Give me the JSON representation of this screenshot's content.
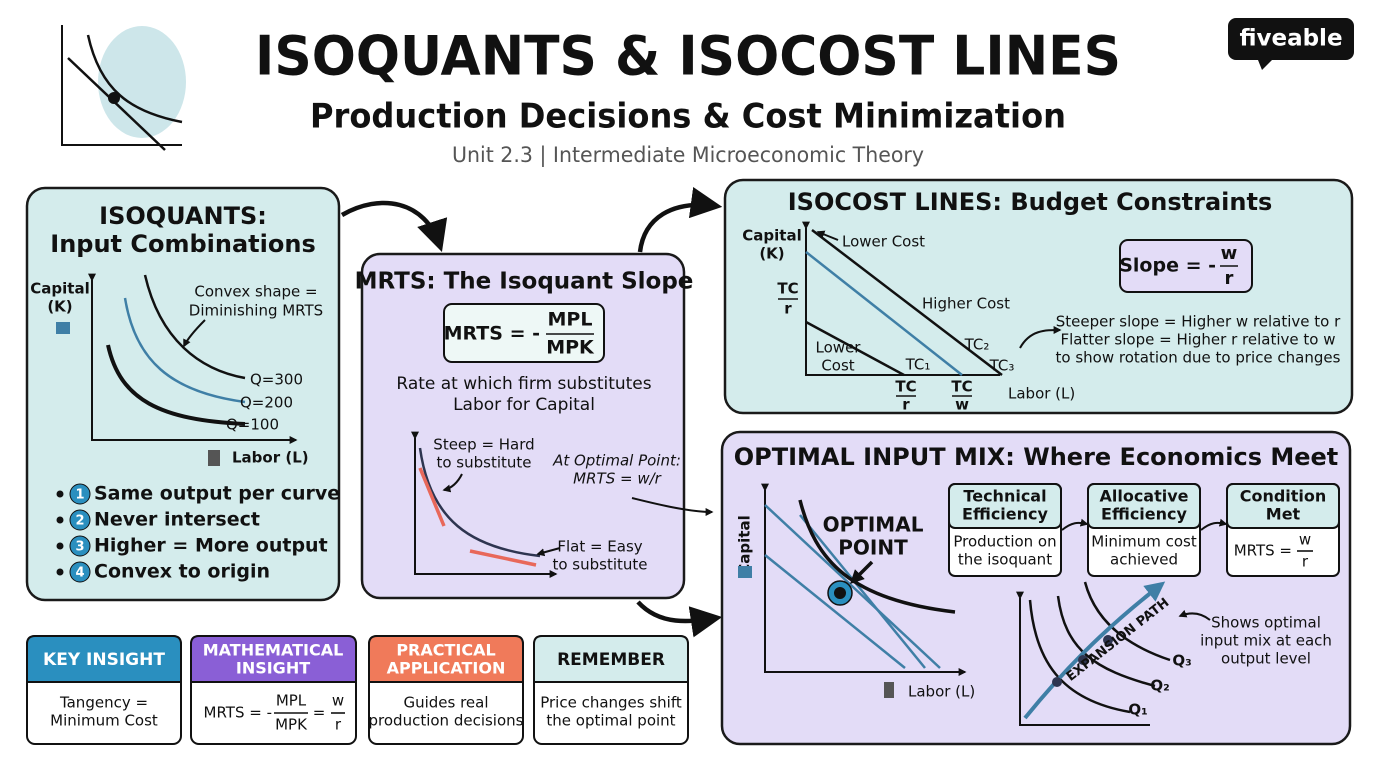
{
  "header": {
    "title": "ISOQUANTS & ISOCOST LINES",
    "subtitle": "Production Decisions & Cost Minimization",
    "unit": "Unit 2.3 | Intermediate Microeconomic Theory",
    "logo": "fiveable"
  },
  "isoquants": {
    "title": [
      "ISOQUANTS:",
      "Input Combinations"
    ],
    "y_axis": [
      "Capital",
      "(K)"
    ],
    "x_axis": "Labor (L)",
    "annotation": [
      "Convex shape =",
      "Diminishing MRTS"
    ],
    "curves": [
      "Q=300",
      "Q=200",
      "Q=100"
    ],
    "properties": [
      {
        "number": "1",
        "text": "Same output per curve"
      },
      {
        "number": "2",
        "text": "Never intersect"
      },
      {
        "number": "3",
        "text": "Higher = More output"
      },
      {
        "number": "4",
        "text": "Convex to origin"
      }
    ]
  },
  "mrts": {
    "title": "MRTS: The Isoquant Slope",
    "formula": {
      "lhs": "MRTS = -",
      "numerator": "MPL",
      "denominator": "MPK"
    },
    "description": [
      "Rate at which firm substitutes",
      "Labor for Capital"
    ],
    "steep": [
      "Steep = Hard",
      "to substitute"
    ],
    "flat": [
      "Flat = Easy",
      "to substitute"
    ],
    "optimal_note": [
      "At Optimal Point:",
      "MRTS = w/r"
    ]
  },
  "isocost": {
    "title": "ISOCOST LINES: Budget Constraints",
    "y_axis": [
      "Capital",
      "(K)"
    ],
    "x_axis": "Labor (L)",
    "lower_cost_top": "Lower Cost",
    "higher_cost": "Higher Cost",
    "lower_cost_inner": [
      "Lower",
      "Cost"
    ],
    "y_intercept": {
      "numerator": "TC",
      "denominator": "r"
    },
    "lines": [
      "TC₁",
      "TC₂",
      "TC₃"
    ],
    "x_intercepts": [
      {
        "numerator": "TC",
        "denominator": "r"
      },
      {
        "numerator": "TC",
        "denominator": "w"
      }
    ],
    "formula": {
      "lhs": "Slope = -",
      "numerator": "w",
      "denominator": "r"
    },
    "notes": [
      "Steeper slope = Higher w relative to r",
      "Flatter slope = Higher r relative to w",
      "to show rotation due to price changes"
    ]
  },
  "optimal": {
    "title": "OPTIMAL INPUT MIX: Where Economics Meet",
    "y_axis": "Capital",
    "x_axis": "Labor (L)",
    "point": [
      "OPTIMAL",
      "POINT"
    ],
    "steps": [
      {
        "heading": [
          "Technical",
          "Efficiency"
        ],
        "body": [
          "Production on",
          "the isoquant"
        ]
      },
      {
        "heading": [
          "Allocative",
          "Efficiency"
        ],
        "body": [
          "Minimum cost",
          "achieved"
        ]
      },
      {
        "heading": [
          "Condition",
          "Met"
        ],
        "body": {
          "lhs": "MRTS =",
          "numerator": "w",
          "denominator": "r"
        }
      }
    ],
    "expansion": {
      "label": "EXPANSION PATH",
      "curves": [
        "Q₁",
        "Q₂",
        "Q₃"
      ],
      "note": [
        "Shows optimal",
        "input mix at each",
        "output level"
      ]
    }
  },
  "cards": [
    {
      "heading": [
        "KEY INSIGHT"
      ],
      "body": [
        "Tangency =",
        "Minimum Cost"
      ]
    },
    {
      "heading": [
        "MATHEMATICAL",
        "INSIGHT"
      ],
      "body": {
        "lhs": "MRTS = -",
        "numerator": "MPL",
        "denominator": "MPK",
        "equals": "=",
        "numerator2": "w",
        "denominator2": "r"
      }
    },
    {
      "heading": [
        "PRACTICAL",
        "APPLICATION"
      ],
      "body": [
        "Guides real",
        "production decisions"
      ]
    },
    {
      "heading": [
        "REMEMBER"
      ],
      "body": [
        "Price changes shift",
        "the optimal point"
      ]
    }
  ]
}
